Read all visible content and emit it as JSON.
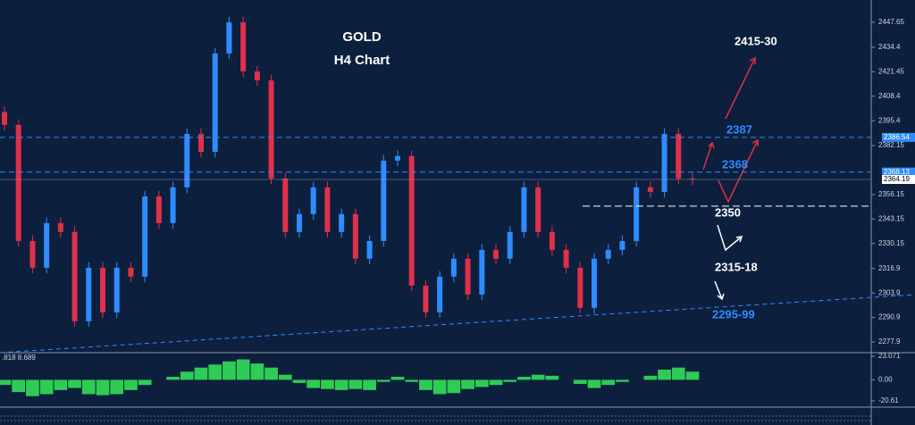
{
  "chart_data": {
    "type": "candlestick",
    "title": "GOLD",
    "subtitle": "H4 Chart",
    "open": [
      2400.0,
      2393.2,
      2331.5,
      2317.3,
      2341.0,
      2336.3,
      2288.9,
      2317.3,
      2293.6,
      2317.3,
      2312.6,
      2355.2,
      2341.0,
      2360.0,
      2388.4,
      2378.9,
      2431.1,
      2447.7,
      2421.6,
      2416.8,
      2364.7,
      2336.3,
      2345.8,
      2360.0,
      2336.3,
      2345.8,
      2322.1,
      2331.5,
      2374.2,
      2376.6,
      2307.8,
      2293.6,
      2312.6,
      2322.1,
      2303.1,
      2326.8,
      2322.1,
      2336.3,
      2360.0,
      2336.3,
      2326.8,
      2317.3,
      2296.0,
      2322.1,
      2326.8,
      2331.5,
      2360.0,
      2357.6,
      2388.4,
      2364.7
    ],
    "high": [
      2403.0,
      2396.2,
      2334.5,
      2344.0,
      2344.0,
      2339.3,
      2320.3,
      2320.3,
      2320.3,
      2320.3,
      2358.2,
      2358.2,
      2363.0,
      2391.4,
      2391.4,
      2434.1,
      2450.7,
      2450.7,
      2424.6,
      2419.8,
      2367.7,
      2348.8,
      2363.0,
      2363.0,
      2348.8,
      2348.8,
      2334.5,
      2377.2,
      2379.6,
      2379.6,
      2310.8,
      2315.6,
      2325.1,
      2325.1,
      2329.8,
      2329.8,
      2339.3,
      2363.0,
      2363.0,
      2339.3,
      2329.8,
      2320.3,
      2325.1,
      2329.8,
      2334.5,
      2363.0,
      2363.0,
      2391.4,
      2391.4,
      2367.7
    ],
    "low": [
      2390.2,
      2328.5,
      2314.3,
      2314.3,
      2333.3,
      2285.9,
      2285.9,
      2290.6,
      2290.6,
      2309.6,
      2309.6,
      2338.0,
      2338.0,
      2357.0,
      2375.9,
      2375.9,
      2428.1,
      2418.6,
      2413.8,
      2361.7,
      2333.3,
      2333.3,
      2342.8,
      2333.3,
      2333.3,
      2319.1,
      2319.1,
      2328.5,
      2371.2,
      2304.8,
      2290.6,
      2290.6,
      2309.6,
      2300.1,
      2300.1,
      2319.1,
      2319.1,
      2333.3,
      2333.3,
      2323.8,
      2314.3,
      2293.0,
      2293.0,
      2319.1,
      2323.8,
      2328.5,
      2354.6,
      2354.6,
      2361.7,
      2361.2
    ],
    "close": [
      2393.2,
      2331.5,
      2317.3,
      2341.0,
      2336.3,
      2288.9,
      2317.3,
      2293.6,
      2317.3,
      2312.6,
      2355.2,
      2341.0,
      2360.0,
      2388.4,
      2378.9,
      2431.1,
      2447.7,
      2421.6,
      2416.8,
      2364.7,
      2336.3,
      2345.8,
      2360.0,
      2336.3,
      2345.8,
      2322.1,
      2331.5,
      2374.2,
      2376.6,
      2307.8,
      2293.6,
      2312.6,
      2322.1,
      2303.1,
      2326.8,
      2322.1,
      2336.3,
      2360.0,
      2336.3,
      2326.8,
      2317.3,
      2296.0,
      2322.1,
      2326.8,
      2331.5,
      2360.0,
      2357.6,
      2388.4,
      2364.7,
      2364.19
    ],
    "up_color": "#2f8cff",
    "down_color": "#e0304a",
    "ylim": [
      2272.2,
      2459.5
    ],
    "yticks": [
      2447.65,
      2434.4,
      2421.45,
      2408.4,
      2395.4,
      2382.15,
      2356.15,
      2343.15,
      2330.15,
      2316.9,
      2303.9,
      2290.9,
      2277.9
    ],
    "price_markers": [
      2386.54,
      2368.13,
      2364.19
    ],
    "annotations": [
      "2415-30",
      "2387",
      "2368",
      "2350",
      "2315-18",
      "2295-99"
    ],
    "support_level": 2350,
    "oscillator": {
      "label": ".818 8.689",
      "color": "#2ecc55",
      "values": [
        -5,
        -12,
        -16,
        -14,
        -10,
        -8,
        -14,
        -15,
        -14,
        -10,
        -5,
        0,
        3,
        8,
        12,
        15,
        18,
        20,
        16,
        12,
        5,
        -3,
        -8,
        -9,
        -10,
        -9,
        -10,
        -2,
        3,
        -2,
        -10,
        -14,
        -13,
        -9,
        -7,
        -5,
        -2,
        3,
        5,
        4,
        0,
        -4,
        -8,
        -5,
        -2,
        0,
        4,
        10,
        12,
        8
      ],
      "ylim": [
        -25.85,
        25.7
      ],
      "yticks": [
        23.071,
        {
          "value": 0,
          "label": "0.00"
        },
        -20.61
      ]
    }
  }
}
